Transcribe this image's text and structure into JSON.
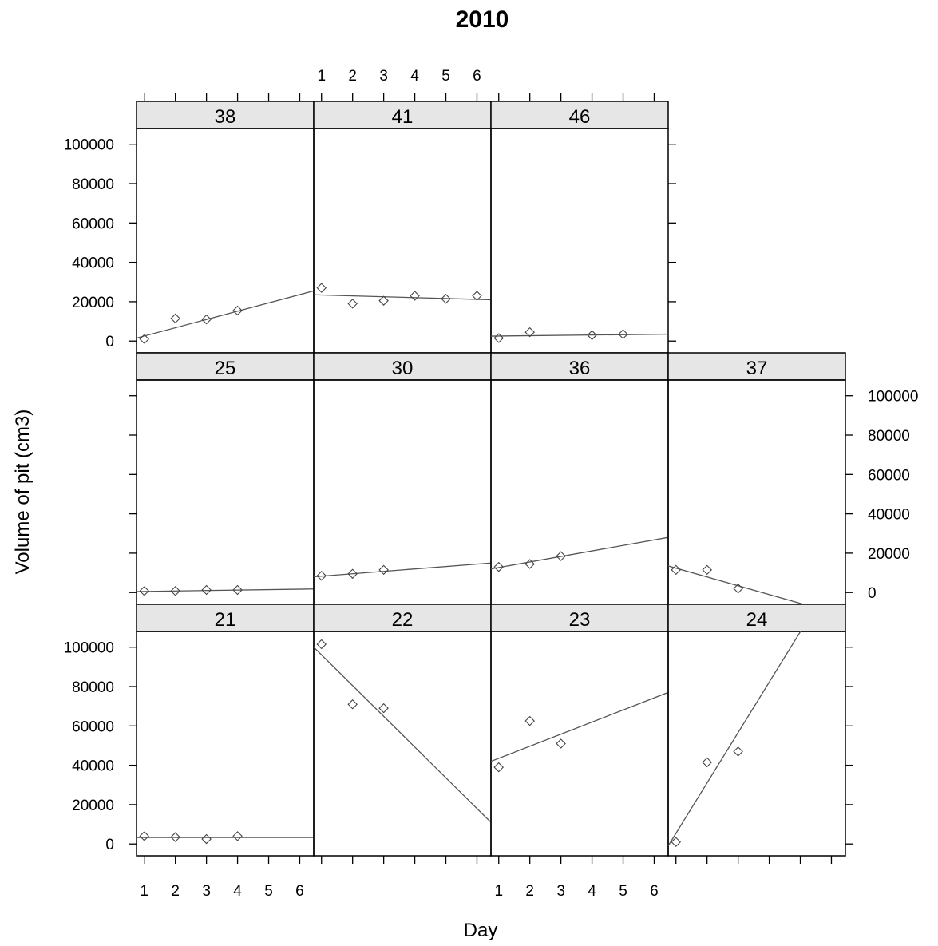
{
  "chart_data": {
    "type": "scatter",
    "title": "2010",
    "xlabel": "Day",
    "ylabel": "Volume of pit (cm3)",
    "xlim": [
      0.75,
      6.45
    ],
    "ylim": [
      -6000,
      108000
    ],
    "x_ticks": [
      1,
      2,
      3,
      4,
      5,
      6
    ],
    "y_ticks": [
      0,
      20000,
      40000,
      60000,
      80000,
      100000
    ],
    "regression_lines": true,
    "panels": [
      {
        "label": "38",
        "row": 0,
        "col": 0,
        "x": [
          1,
          2,
          3,
          4
        ],
        "y": [
          1000,
          11500,
          11000,
          15500
        ],
        "fit": [
          1500,
          25500
        ]
      },
      {
        "label": "41",
        "row": 0,
        "col": 1,
        "x": [
          1,
          2,
          3,
          4,
          5,
          6
        ],
        "y": [
          27000,
          19000,
          20500,
          23000,
          21500,
          23000
        ],
        "fit": [
          23500,
          21000
        ]
      },
      {
        "label": "46",
        "row": 0,
        "col": 2,
        "x": [
          1,
          2,
          4,
          5
        ],
        "y": [
          1500,
          4500,
          3000,
          3500
        ],
        "fit": [
          2500,
          3500
        ]
      },
      {
        "label": "25",
        "row": 1,
        "col": 0,
        "x": [
          1,
          2,
          3,
          4
        ],
        "y": [
          800,
          800,
          1300,
          1300
        ],
        "fit": [
          500,
          1800
        ]
      },
      {
        "label": "30",
        "row": 1,
        "col": 1,
        "x": [
          1,
          2,
          3
        ],
        "y": [
          8500,
          9500,
          11500
        ],
        "fit": [
          8000,
          15000
        ]
      },
      {
        "label": "36",
        "row": 1,
        "col": 2,
        "x": [
          1,
          2,
          3
        ],
        "y": [
          13000,
          14500,
          18500
        ],
        "fit": [
          12000,
          28000
        ]
      },
      {
        "label": "37",
        "row": 1,
        "col": 3,
        "x": [
          1,
          2,
          3
        ],
        "y": [
          11500,
          11500,
          2000
        ],
        "fit": [
          13500,
          -12000
        ]
      },
      {
        "label": "21",
        "row": 2,
        "col": 0,
        "x": [
          1,
          2,
          3,
          4
        ],
        "y": [
          4000,
          3500,
          2500,
          4000
        ],
        "fit": [
          3300,
          3300
        ]
      },
      {
        "label": "22",
        "row": 2,
        "col": 1,
        "x": [
          1,
          2,
          3
        ],
        "y": [
          101500,
          71000,
          69000
        ],
        "fit": [
          100000,
          11000
        ]
      },
      {
        "label": "23",
        "row": 2,
        "col": 2,
        "x": [
          1,
          2,
          3
        ],
        "y": [
          39000,
          62500,
          51000
        ],
        "fit": [
          42000,
          77000
        ]
      },
      {
        "label": "24",
        "row": 2,
        "col": 3,
        "x": [
          1,
          2,
          3
        ],
        "y": [
          1000,
          41500,
          47000
        ],
        "fit": [
          -1000,
          145000
        ]
      }
    ]
  }
}
